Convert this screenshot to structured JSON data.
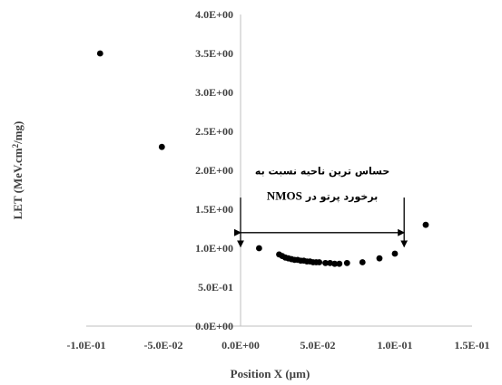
{
  "chart_data": {
    "type": "scatter",
    "xlabel": "Position X (µm)",
    "ylabel_main": "LET (MeV.cm",
    "ylabel_sup": "2",
    "ylabel_end": "/mg)",
    "xlim": [
      -0.1,
      0.15
    ],
    "ylim": [
      0,
      4
    ],
    "x_ticks": [
      -0.1,
      -0.05,
      0,
      0.05,
      0.1,
      0.15
    ],
    "x_tick_labels": [
      "-1.0E-01",
      "-5.0E-02",
      "0.0E+00",
      "5.0E-02",
      "1.0E-01",
      "1.5E-01"
    ],
    "y_ticks": [
      0,
      0.5,
      1,
      1.5,
      2,
      2.5,
      3,
      3.5,
      4
    ],
    "y_tick_labels": [
      "0.0E+00",
      "5.0E-01",
      "1.0E+00",
      "1.5E+00",
      "2.0E+00",
      "2.5E+00",
      "3.0E+00",
      "3.5E+00",
      "4.0E+00"
    ],
    "grid": false,
    "point_color": "#000000",
    "points": [
      {
        "x": -0.091,
        "y": 3.5
      },
      {
        "x": -0.051,
        "y": 2.3
      },
      {
        "x": 0.012,
        "y": 1.0
      },
      {
        "x": 0.025,
        "y": 0.92
      },
      {
        "x": 0.027,
        "y": 0.9
      },
      {
        "x": 0.029,
        "y": 0.88
      },
      {
        "x": 0.031,
        "y": 0.87
      },
      {
        "x": 0.033,
        "y": 0.86
      },
      {
        "x": 0.035,
        "y": 0.85
      },
      {
        "x": 0.037,
        "y": 0.85
      },
      {
        "x": 0.039,
        "y": 0.84
      },
      {
        "x": 0.041,
        "y": 0.84
      },
      {
        "x": 0.043,
        "y": 0.83
      },
      {
        "x": 0.045,
        "y": 0.83
      },
      {
        "x": 0.047,
        "y": 0.82
      },
      {
        "x": 0.049,
        "y": 0.82
      },
      {
        "x": 0.051,
        "y": 0.82
      },
      {
        "x": 0.055,
        "y": 0.81
      },
      {
        "x": 0.058,
        "y": 0.81
      },
      {
        "x": 0.061,
        "y": 0.8
      },
      {
        "x": 0.064,
        "y": 0.8
      },
      {
        "x": 0.069,
        "y": 0.81
      },
      {
        "x": 0.079,
        "y": 0.82
      },
      {
        "x": 0.09,
        "y": 0.87
      },
      {
        "x": 0.1,
        "y": 0.93
      },
      {
        "x": 0.12,
        "y": 1.3
      }
    ],
    "annotation": {
      "line1": "حساس ترین ناحیه نسبت به",
      "line2_rtl": "برخورد پرتو در",
      "line2_latin": "NMOS",
      "span_x": [
        0,
        0.106
      ],
      "arrow_y": 1.2,
      "drop_top_y": 1.65,
      "drop_bottom_y": 1.02
    }
  }
}
